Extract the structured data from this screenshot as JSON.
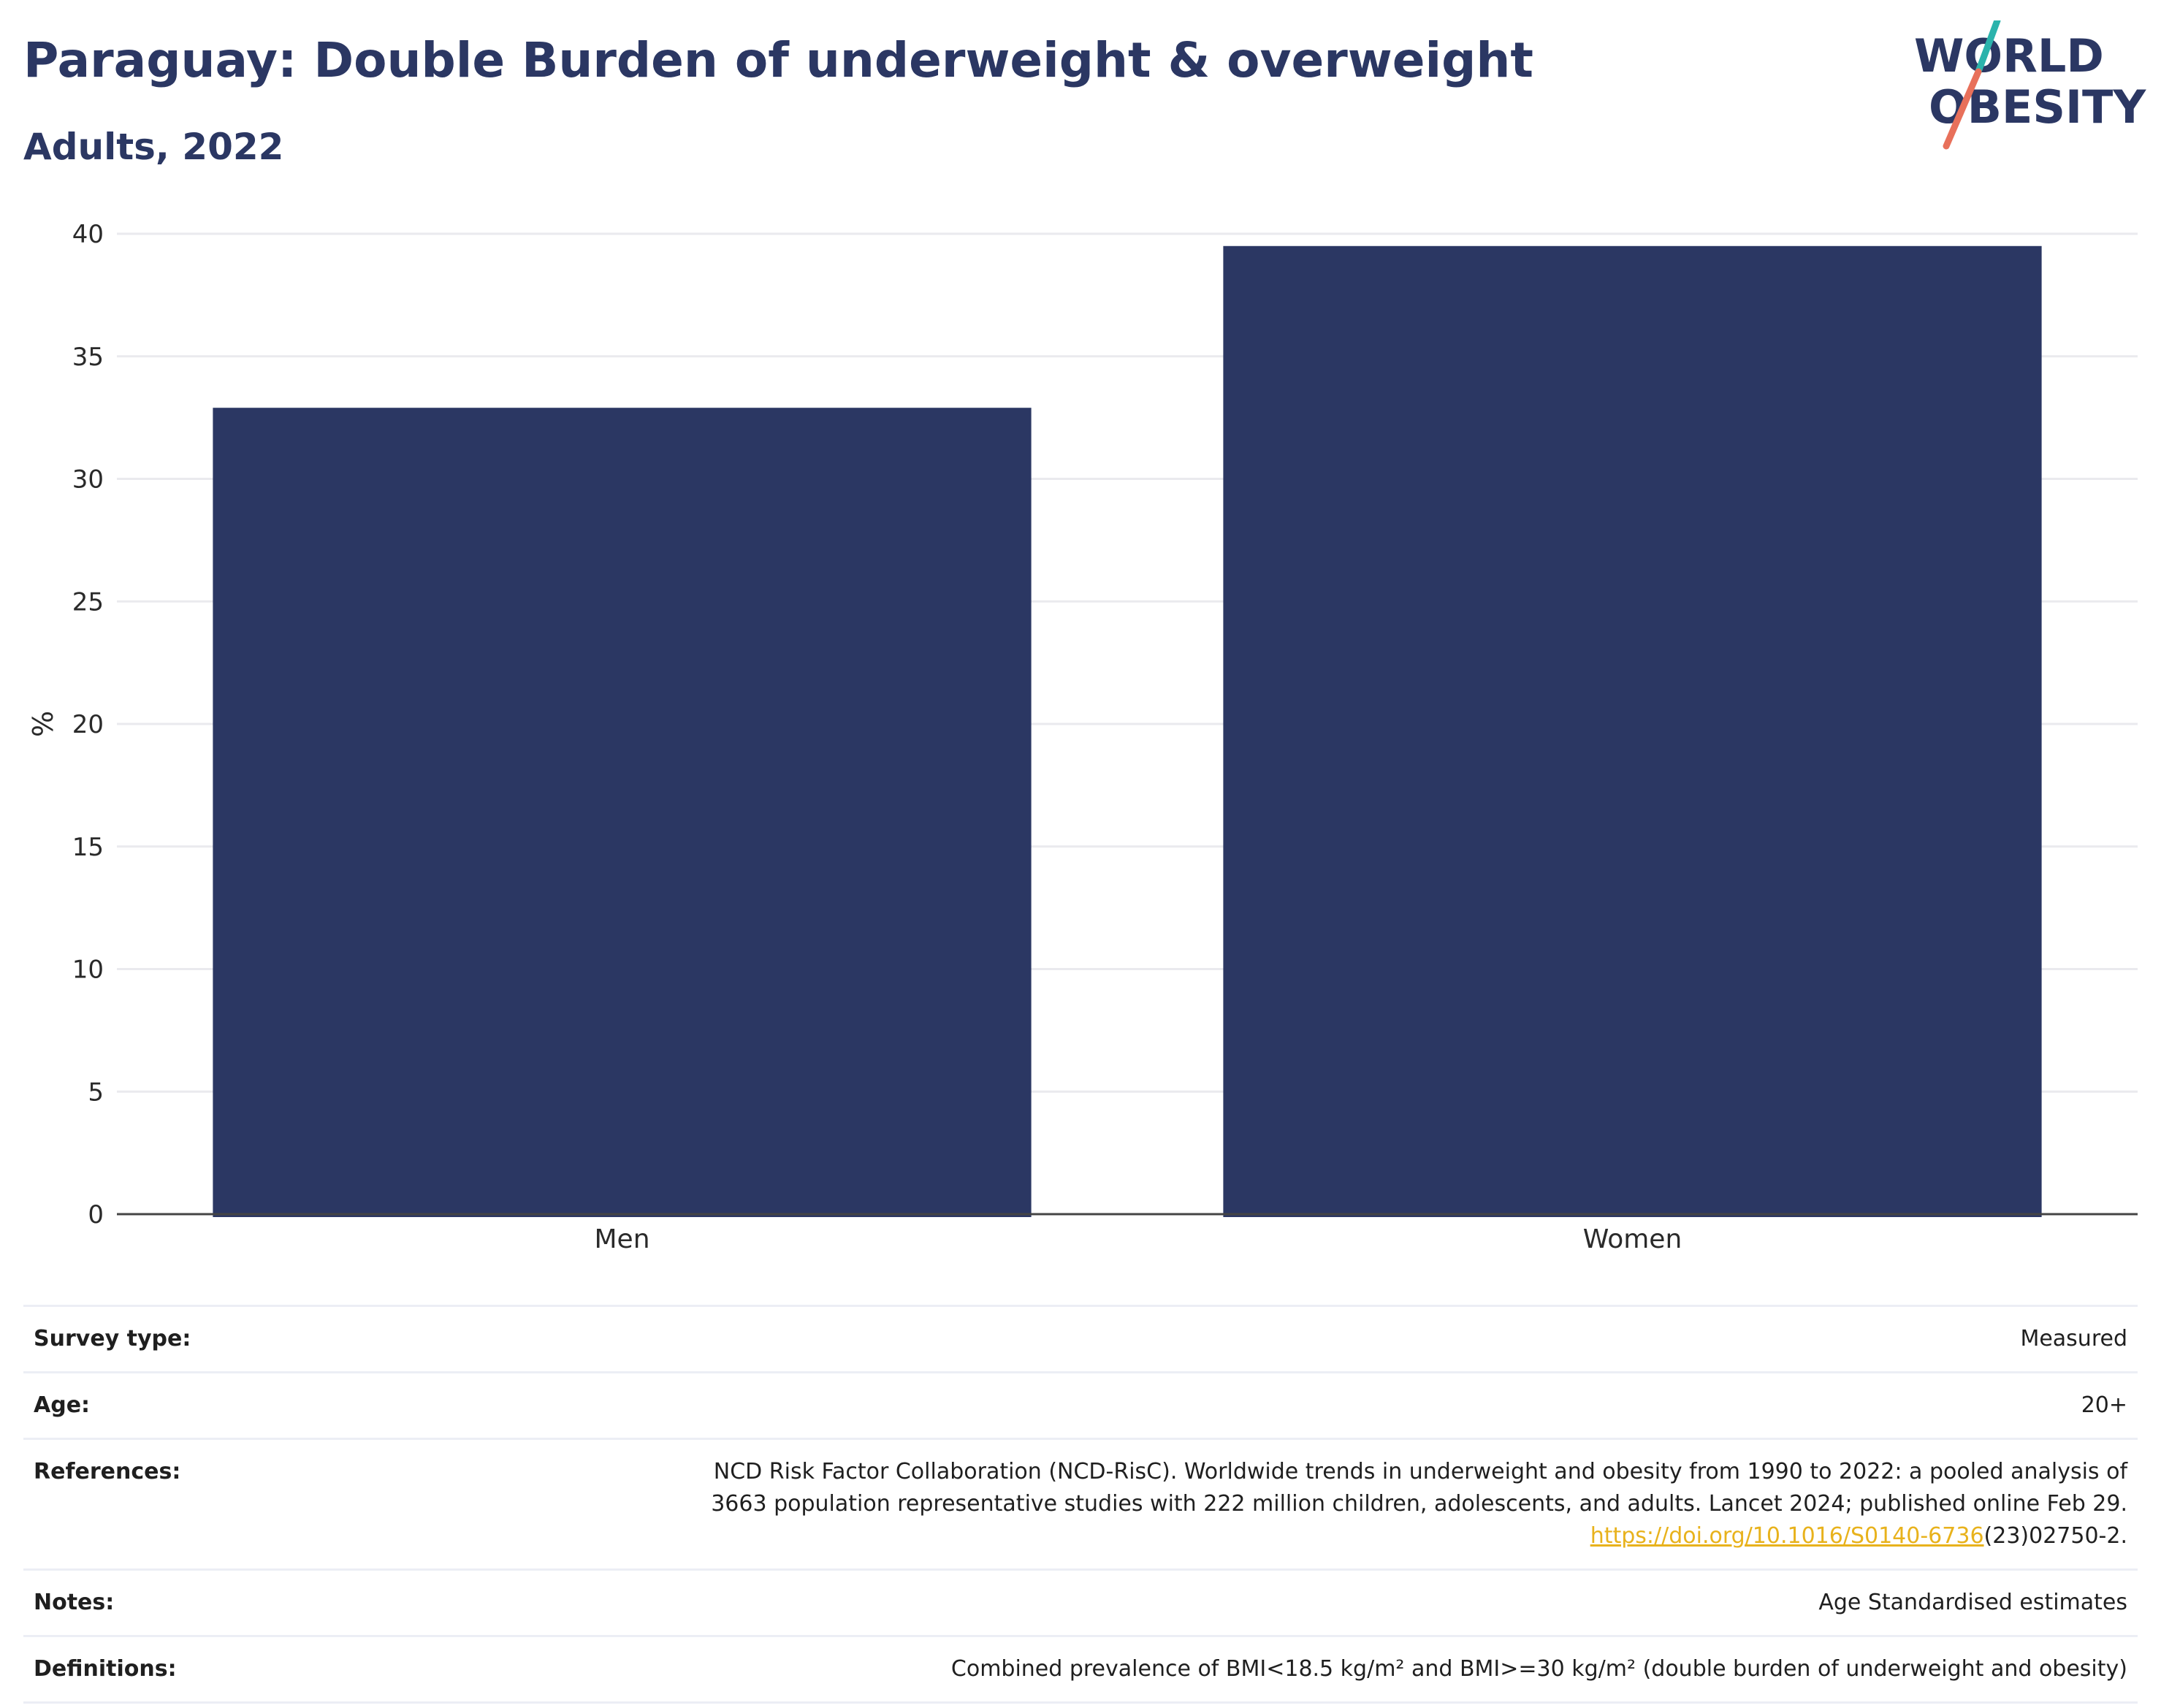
{
  "header": {
    "title": "Paraguay: Double Burden of underweight & overweight",
    "subtitle": "Adults, 2022"
  },
  "logo": {
    "line1": "WORLD",
    "line2": "OBESITY",
    "colors": {
      "text": "#2b3763",
      "slash_top": "#2bb3ac",
      "slash_bottom": "#e8705a"
    }
  },
  "chart_data": {
    "type": "bar",
    "categories": [
      "Men",
      "Women"
    ],
    "values": [
      32.9,
      39.5
    ],
    "title": "",
    "xlabel": "",
    "ylabel": "%",
    "ylim": [
      0,
      40
    ],
    "yticks": [
      0,
      5,
      10,
      15,
      20,
      25,
      30,
      35,
      40
    ],
    "grid": true,
    "bar_color": "#2b3763"
  },
  "info": {
    "survey_type": {
      "label": "Survey type:",
      "value": "Measured"
    },
    "age": {
      "label": "Age:",
      "value": "20+"
    },
    "references": {
      "label": "References:",
      "line1": "NCD Risk Factor Collaboration (NCD-RisC). Worldwide trends in underweight and obesity from 1990 to 2022: a pooled analysis of",
      "line2": "3663 population representative studies with 222 million children, adolescents, and adults. Lancet 2024; published online Feb 29.",
      "link": "https://doi.org/10.1016/S0140-6736",
      "link_suffix": "(23)02750-2."
    },
    "notes": {
      "label": "Notes:",
      "value": "Age Standardised estimates"
    },
    "definitions": {
      "label": "Definitions:",
      "value": "Combined prevalence of BMI<18.5 kg/m² and BMI>=30 kg/m² (double burden of underweight and obesity)"
    }
  }
}
